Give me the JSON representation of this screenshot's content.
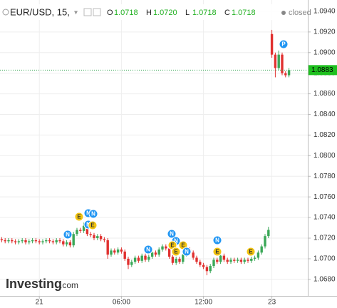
{
  "header": {
    "symbol": "EUR/USD, 15,",
    "ohlc": [
      {
        "key": "O",
        "value": "1.0718"
      },
      {
        "key": "H",
        "value": "1.0720"
      },
      {
        "key": "L",
        "value": "1.0718"
      },
      {
        "key": "C",
        "value": "1.0718"
      }
    ],
    "status": "closed"
  },
  "logo": {
    "name": "Investing",
    "suffix": ".com"
  },
  "events": [
    "N",
    "E",
    "N",
    "N",
    "N",
    "E",
    "N",
    "N",
    "N",
    "E",
    "E",
    "E",
    "N",
    "N",
    "E",
    "E",
    "P"
  ],
  "chart_data": {
    "type": "candlestick",
    "categories": [
      null,
      null,
      null,
      null,
      null,
      null,
      null,
      null,
      null,
      null,
      null,
      "21",
      null,
      null,
      null,
      null,
      null,
      null,
      null,
      null,
      null,
      null,
      null,
      null,
      null,
      null,
      null,
      null,
      null,
      null,
      null,
      null,
      null,
      null,
      null,
      "06:00",
      null,
      null,
      null,
      null,
      null,
      null,
      null,
      null,
      null,
      null,
      null,
      null,
      null,
      null,
      null,
      null,
      null,
      null,
      null,
      null,
      null,
      null,
      null,
      "12:00",
      null,
      null,
      null,
      null,
      null,
      null,
      null,
      null,
      null,
      null,
      null,
      null,
      null,
      null,
      null,
      null,
      null,
      null,
      null,
      "23",
      null,
      null,
      null,
      null,
      null
    ],
    "open": [
      1.0719,
      1.0718,
      1.0717,
      1.0718,
      1.0717,
      1.0716,
      1.0717,
      1.0718,
      1.0716,
      1.0717,
      1.0718,
      1.0717,
      1.0716,
      1.0717,
      1.0718,
      1.0717,
      1.0716,
      1.0718,
      1.0717,
      1.0714,
      1.0716,
      1.0713,
      1.0724,
      1.0728,
      1.0727,
      1.0732,
      1.0724,
      1.0723,
      1.072,
      1.0722,
      1.0719,
      1.0718,
      1.0704,
      1.0708,
      1.0706,
      1.0709,
      1.0707,
      1.07,
      1.0694,
      1.0697,
      1.0701,
      1.0698,
      1.0703,
      1.0699,
      1.0702,
      1.0706,
      1.0704,
      1.0709,
      1.0712,
      1.071,
      1.0702,
      1.0696,
      1.07,
      1.0697,
      1.0704,
      1.0709,
      1.0706,
      1.0701,
      1.0697,
      1.0694,
      1.0692,
      1.0688,
      1.0693,
      1.0699,
      1.0697,
      1.0703,
      1.0699,
      1.0697,
      1.0699,
      1.0698,
      1.0699,
      1.0697,
      1.0699,
      1.0698,
      1.07,
      1.0701,
      1.0706,
      1.0712,
      1.0722,
      1.0918,
      1.0898,
      1.0885,
      1.0898,
      1.088,
      1.0878
    ],
    "high": [
      1.0721,
      1.072,
      1.072,
      1.072,
      1.0719,
      1.0719,
      1.072,
      1.072,
      1.0719,
      1.072,
      1.072,
      1.0719,
      1.0719,
      1.072,
      1.072,
      1.0719,
      1.072,
      1.072,
      1.0719,
      1.0718,
      1.0718,
      1.0726,
      1.073,
      1.073,
      1.0735,
      1.0734,
      1.0726,
      1.0725,
      1.0724,
      1.0724,
      1.0721,
      1.072,
      1.071,
      1.071,
      1.0711,
      1.0711,
      1.0709,
      1.0702,
      1.0699,
      1.0703,
      1.0703,
      1.0705,
      1.0705,
      1.0704,
      1.0708,
      1.0708,
      1.0711,
      1.0714,
      1.0714,
      1.0712,
      1.0704,
      1.0702,
      1.0702,
      1.0706,
      1.0711,
      1.0711,
      1.0708,
      1.0703,
      1.0699,
      1.0696,
      1.0694,
      1.0695,
      1.0701,
      1.0701,
      1.0705,
      1.0705,
      1.0701,
      1.0701,
      1.0701,
      1.0701,
      1.0701,
      1.0701,
      1.0701,
      1.0702,
      1.0703,
      1.0708,
      1.0714,
      1.0724,
      1.0731,
      1.0922,
      1.09,
      1.0902,
      1.09,
      1.0882,
      1.0885
    ],
    "low": [
      1.0716,
      1.0715,
      1.0715,
      1.0715,
      1.0714,
      1.0714,
      1.0715,
      1.0714,
      1.0714,
      1.0715,
      1.0715,
      1.0714,
      1.0714,
      1.0715,
      1.0715,
      1.0714,
      1.0714,
      1.0715,
      1.0712,
      1.0712,
      1.0711,
      1.0711,
      1.0722,
      1.0725,
      1.0725,
      1.0722,
      1.0721,
      1.0718,
      1.0718,
      1.0717,
      1.0716,
      1.07,
      1.0702,
      1.0704,
      1.0704,
      1.0705,
      1.0698,
      1.069,
      1.0692,
      1.0695,
      1.0696,
      1.0696,
      1.0697,
      1.0697,
      1.07,
      1.0702,
      1.0702,
      1.0707,
      1.0708,
      1.07,
      1.0694,
      1.0694,
      1.0695,
      1.0695,
      1.0702,
      1.0704,
      1.0699,
      1.0695,
      1.0692,
      1.069,
      1.0684,
      1.0686,
      1.0691,
      1.0695,
      1.0695,
      1.0697,
      1.0695,
      1.0695,
      1.0696,
      1.0696,
      1.0695,
      1.0695,
      1.0696,
      1.0696,
      1.0698,
      1.0699,
      1.0704,
      1.071,
      1.072,
      1.0895,
      1.0876,
      1.0883,
      1.0878,
      1.0876,
      1.0876
    ],
    "close": [
      1.0718,
      1.0717,
      1.0718,
      1.0717,
      1.0716,
      1.0717,
      1.0718,
      1.0716,
      1.0717,
      1.0718,
      1.0717,
      1.0716,
      1.0717,
      1.0718,
      1.0717,
      1.0716,
      1.0718,
      1.0717,
      1.0714,
      1.0716,
      1.0713,
      1.0724,
      1.0728,
      1.0727,
      1.0732,
      1.0724,
      1.0723,
      1.072,
      1.0722,
      1.0719,
      1.0718,
      1.0704,
      1.0708,
      1.0706,
      1.0709,
      1.0707,
      1.07,
      1.0694,
      1.0697,
      1.0701,
      1.0698,
      1.0703,
      1.0699,
      1.0702,
      1.0706,
      1.0704,
      1.0709,
      1.0712,
      1.071,
      1.0702,
      1.0696,
      1.07,
      1.0697,
      1.0704,
      1.0709,
      1.0706,
      1.0701,
      1.0697,
      1.0694,
      1.0692,
      1.0688,
      1.0693,
      1.0699,
      1.0697,
      1.0703,
      1.0699,
      1.0697,
      1.0699,
      1.0698,
      1.0699,
      1.0697,
      1.0699,
      1.0698,
      1.07,
      1.0701,
      1.0706,
      1.0712,
      1.0722,
      1.0728,
      1.0898,
      1.0885,
      1.0898,
      1.088,
      1.0878,
      1.0883
    ],
    "up_color": "#3aa757",
    "down_color": "#e0302f",
    "ylim": [
      1.0664,
      1.0951
    ],
    "yticks": [
      {
        "value": 1.068,
        "label": "1.0680"
      },
      {
        "value": 1.07,
        "label": "1.0700"
      },
      {
        "value": 1.072,
        "label": "1.0720"
      },
      {
        "value": 1.074,
        "label": "1.0740"
      },
      {
        "value": 1.076,
        "label": "1.0760"
      },
      {
        "value": 1.078,
        "label": "1.0780"
      },
      {
        "value": 1.08,
        "label": "1.0800"
      },
      {
        "value": 1.082,
        "label": "1.0820"
      },
      {
        "value": 1.084,
        "label": "1.0840"
      },
      {
        "value": 1.086,
        "label": "1.0860"
      },
      {
        "value": 1.088,
        "label": "1.0880"
      },
      {
        "value": 1.09,
        "label": "1.0900"
      },
      {
        "value": 1.092,
        "label": "1.0920"
      },
      {
        "value": 1.094,
        "label": "1.0940"
      }
    ],
    "last_price": {
      "value": 1.0883,
      "label": "1.0883"
    },
    "grid": true
  }
}
